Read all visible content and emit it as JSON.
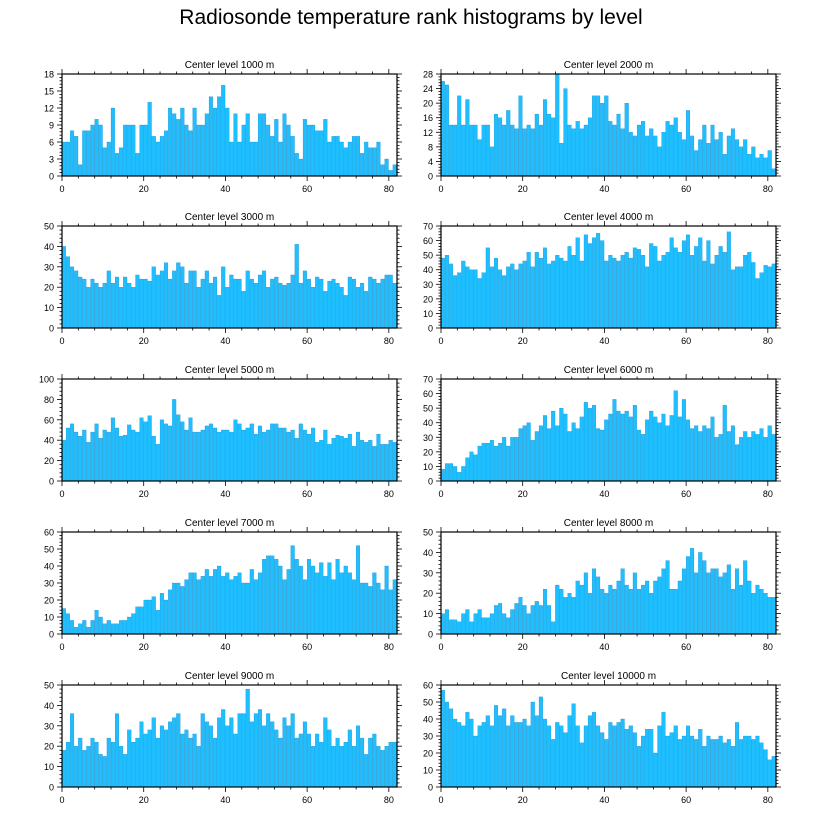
{
  "page": {
    "title": "Radiosonde temperature rank histograms by level"
  },
  "style": {
    "bar_color": "#1ebeff",
    "bar_edge": "#0a7fbf",
    "axis_color": "#000000"
  },
  "chart_data": [
    {
      "type": "bar",
      "title": "Center level 1000 m",
      "xlim": [
        0,
        82
      ],
      "ylim": [
        0,
        18
      ],
      "xticks": [
        0,
        20,
        40,
        60,
        80
      ],
      "yticks": [
        0,
        3,
        6,
        9,
        12,
        15,
        18
      ],
      "values": [
        6,
        6,
        8,
        7,
        2,
        8,
        8,
        9,
        10,
        9,
        5,
        6,
        12,
        4,
        5,
        9,
        9,
        9,
        4,
        9,
        9,
        13,
        7,
        6,
        7,
        8,
        12,
        11,
        10,
        12,
        9,
        8,
        12,
        9,
        9,
        11,
        14,
        12,
        14,
        16,
        12,
        6,
        11,
        6,
        9,
        11,
        6,
        6,
        11,
        11,
        9,
        7,
        10,
        6,
        11,
        9,
        7,
        4,
        3,
        10,
        9,
        9,
        8,
        8,
        10,
        6,
        7,
        7,
        6,
        5,
        6,
        7,
        7,
        4,
        6,
        5,
        5,
        6,
        2,
        3,
        1,
        2
      ]
    },
    {
      "type": "bar",
      "title": "Center level 2000 m",
      "xlim": [
        0,
        82
      ],
      "ylim": [
        0,
        28
      ],
      "xticks": [
        0,
        20,
        40,
        60,
        80
      ],
      "yticks": [
        0,
        4,
        8,
        12,
        16,
        20,
        24,
        28
      ],
      "values": [
        26,
        25,
        14,
        14,
        22,
        14,
        21,
        14,
        14,
        10,
        14,
        14,
        8,
        17,
        16,
        14,
        18,
        14,
        13,
        22,
        13,
        14,
        13,
        17,
        14,
        21,
        17,
        16,
        28,
        9,
        24,
        14,
        13,
        15,
        13,
        14,
        16,
        22,
        22,
        20,
        22,
        15,
        14,
        17,
        13,
        20,
        12,
        11,
        14,
        15,
        11,
        13,
        11,
        8,
        12,
        15,
        14,
        16,
        12,
        10,
        18,
        11,
        7,
        10,
        14,
        9,
        14,
        10,
        12,
        6,
        11,
        13,
        10,
        8,
        10,
        6,
        8,
        5,
        6,
        5,
        7,
        2
      ]
    },
    {
      "type": "bar",
      "title": "Center level 3000 m",
      "xlim": [
        0,
        82
      ],
      "ylim": [
        0,
        50
      ],
      "xticks": [
        0,
        20,
        40,
        60,
        80
      ],
      "yticks": [
        0,
        10,
        20,
        30,
        40,
        50
      ],
      "values": [
        40,
        35,
        30,
        28,
        25,
        24,
        20,
        24,
        22,
        20,
        22,
        28,
        22,
        25,
        20,
        25,
        22,
        20,
        26,
        24,
        24,
        23,
        30,
        26,
        28,
        32,
        24,
        28,
        32,
        30,
        22,
        28,
        28,
        20,
        24,
        28,
        22,
        25,
        16,
        30,
        20,
        26,
        24,
        24,
        18,
        28,
        24,
        22,
        26,
        28,
        20,
        24,
        25,
        22,
        21,
        22,
        26,
        41,
        22,
        28,
        24,
        20,
        25,
        24,
        18,
        23,
        24,
        22,
        20,
        16,
        25,
        24,
        20,
        22,
        18,
        25,
        24,
        22,
        24,
        26,
        26,
        22
      ]
    },
    {
      "type": "bar",
      "title": "Center level 4000 m",
      "xlim": [
        0,
        82
      ],
      "ylim": [
        0,
        70
      ],
      "xticks": [
        0,
        20,
        40,
        60,
        80
      ],
      "yticks": [
        0,
        10,
        20,
        30,
        40,
        50,
        60,
        70
      ],
      "values": [
        48,
        50,
        44,
        36,
        38,
        46,
        42,
        40,
        40,
        34,
        38,
        55,
        42,
        48,
        40,
        36,
        42,
        44,
        40,
        44,
        46,
        52,
        42,
        52,
        48,
        55,
        44,
        46,
        50,
        48,
        46,
        56,
        50,
        62,
        46,
        64,
        58,
        62,
        65,
        60,
        46,
        50,
        48,
        46,
        50,
        52,
        48,
        55,
        54,
        50,
        42,
        58,
        56,
        46,
        50,
        52,
        62,
        55,
        52,
        60,
        64,
        50,
        56,
        62,
        46,
        60,
        44,
        50,
        56,
        52,
        66,
        40,
        42,
        42,
        50,
        52,
        45,
        34,
        38,
        43,
        42,
        44
      ]
    },
    {
      "type": "bar",
      "title": "Center level 5000 m",
      "xlim": [
        0,
        82
      ],
      "ylim": [
        0,
        100
      ],
      "xticks": [
        0,
        20,
        40,
        60,
        80
      ],
      "yticks": [
        0,
        20,
        40,
        60,
        80,
        100
      ],
      "values": [
        40,
        52,
        56,
        48,
        44,
        50,
        38,
        48,
        56,
        42,
        50,
        48,
        62,
        52,
        44,
        45,
        55,
        50,
        48,
        62,
        58,
        64,
        44,
        36,
        60,
        56,
        54,
        80,
        65,
        58,
        50,
        62,
        48,
        48,
        50,
        54,
        56,
        52,
        48,
        50,
        50,
        48,
        60,
        56,
        50,
        52,
        56,
        46,
        54,
        48,
        50,
        56,
        56,
        52,
        52,
        48,
        50,
        42,
        56,
        50,
        46,
        52,
        38,
        40,
        50,
        36,
        42,
        45,
        44,
        42,
        46,
        34,
        48,
        40,
        38,
        40,
        34,
        46,
        36,
        36,
        40,
        38
      ]
    },
    {
      "type": "bar",
      "title": "Center level 6000 m",
      "xlim": [
        0,
        82
      ],
      "ylim": [
        0,
        70
      ],
      "xticks": [
        0,
        20,
        40,
        60,
        80
      ],
      "yticks": [
        0,
        10,
        20,
        30,
        40,
        50,
        60,
        70
      ],
      "values": [
        8,
        12,
        12,
        10,
        6,
        10,
        16,
        20,
        18,
        24,
        26,
        26,
        28,
        24,
        26,
        30,
        24,
        30,
        30,
        36,
        38,
        40,
        28,
        34,
        38,
        45,
        36,
        48,
        38,
        50,
        46,
        34,
        40,
        36,
        44,
        54,
        50,
        52,
        36,
        35,
        42,
        46,
        56,
        48,
        46,
        48,
        44,
        52,
        35,
        32,
        42,
        48,
        44,
        40,
        46,
        38,
        45,
        62,
        44,
        56,
        42,
        36,
        38,
        34,
        38,
        36,
        44,
        30,
        32,
        52,
        34,
        38,
        25,
        30,
        34,
        30,
        34,
        32,
        36,
        30,
        38,
        32
      ]
    },
    {
      "type": "bar",
      "title": "Center level 7000 m",
      "xlim": [
        0,
        82
      ],
      "ylim": [
        0,
        60
      ],
      "xticks": [
        0,
        20,
        40,
        60,
        80
      ],
      "yticks": [
        0,
        10,
        20,
        30,
        40,
        50,
        60
      ],
      "values": [
        15,
        12,
        8,
        4,
        6,
        8,
        4,
        8,
        14,
        10,
        6,
        8,
        6,
        6,
        8,
        8,
        10,
        12,
        16,
        16,
        20,
        20,
        22,
        14,
        24,
        20,
        26,
        30,
        30,
        28,
        32,
        36,
        36,
        32,
        34,
        38,
        34,
        38,
        40,
        34,
        36,
        32,
        34,
        36,
        30,
        30,
        38,
        32,
        36,
        44,
        46,
        46,
        44,
        40,
        32,
        38,
        52,
        44,
        40,
        32,
        44,
        40,
        36,
        42,
        34,
        42,
        32,
        44,
        36,
        40,
        36,
        32,
        52,
        30,
        30,
        28,
        36,
        30,
        26,
        40,
        26,
        32
      ]
    },
    {
      "type": "bar",
      "title": "Center level 8000 m",
      "xlim": [
        0,
        82
      ],
      "ylim": [
        0,
        50
      ],
      "xticks": [
        0,
        20,
        40,
        60,
        80
      ],
      "yticks": [
        0,
        10,
        20,
        30,
        40,
        50
      ],
      "values": [
        10,
        12,
        7,
        7,
        6,
        10,
        12,
        6,
        10,
        12,
        8,
        8,
        10,
        14,
        15,
        10,
        8,
        12,
        15,
        18,
        14,
        10,
        14,
        16,
        14,
        22,
        14,
        6,
        24,
        22,
        18,
        20,
        18,
        26,
        24,
        30,
        20,
        32,
        28,
        22,
        20,
        24,
        22,
        26,
        32,
        24,
        22,
        30,
        22,
        24,
        26,
        20,
        26,
        28,
        32,
        36,
        22,
        22,
        26,
        32,
        38,
        42,
        30,
        40,
        36,
        30,
        32,
        32,
        28,
        30,
        34,
        22,
        32,
        24,
        36,
        26,
        20,
        24,
        22,
        20,
        18,
        18
      ]
    },
    {
      "type": "bar",
      "title": "Center level 9000 m",
      "xlim": [
        0,
        82
      ],
      "ylim": [
        0,
        50
      ],
      "xticks": [
        0,
        20,
        40,
        60,
        80
      ],
      "yticks": [
        0,
        10,
        20,
        30,
        40,
        50
      ],
      "values": [
        18,
        22,
        36,
        20,
        24,
        18,
        20,
        24,
        22,
        16,
        15,
        24,
        22,
        36,
        20,
        16,
        28,
        22,
        24,
        32,
        26,
        28,
        34,
        24,
        30,
        28,
        32,
        34,
        36,
        26,
        28,
        24,
        26,
        20,
        36,
        32,
        30,
        24,
        34,
        38,
        30,
        34,
        26,
        36,
        36,
        48,
        32,
        36,
        38,
        30,
        36,
        32,
        28,
        24,
        34,
        30,
        36,
        24,
        26,
        32,
        26,
        20,
        26,
        22,
        34,
        28,
        20,
        24,
        20,
        22,
        28,
        20,
        30,
        24,
        16,
        24,
        26,
        20,
        18,
        20,
        22,
        22
      ]
    },
    {
      "type": "bar",
      "title": "Center level 10000 m",
      "xlim": [
        0,
        82
      ],
      "ylim": [
        0,
        60
      ],
      "xticks": [
        0,
        20,
        40,
        60,
        80
      ],
      "yticks": [
        0,
        10,
        20,
        30,
        40,
        50,
        60
      ],
      "values": [
        57,
        50,
        46,
        40,
        38,
        36,
        44,
        40,
        30,
        36,
        38,
        42,
        36,
        48,
        42,
        46,
        36,
        42,
        38,
        38,
        40,
        36,
        50,
        42,
        53,
        40,
        36,
        28,
        38,
        36,
        32,
        42,
        49,
        36,
        26,
        36,
        42,
        44,
        36,
        32,
        28,
        38,
        36,
        38,
        40,
        34,
        36,
        32,
        24,
        30,
        34,
        34,
        20,
        36,
        44,
        30,
        32,
        36,
        28,
        30,
        36,
        30,
        28,
        34,
        24,
        30,
        28,
        28,
        30,
        26,
        28,
        24,
        38,
        28,
        30,
        30,
        28,
        30,
        26,
        22,
        16,
        18
      ]
    }
  ]
}
